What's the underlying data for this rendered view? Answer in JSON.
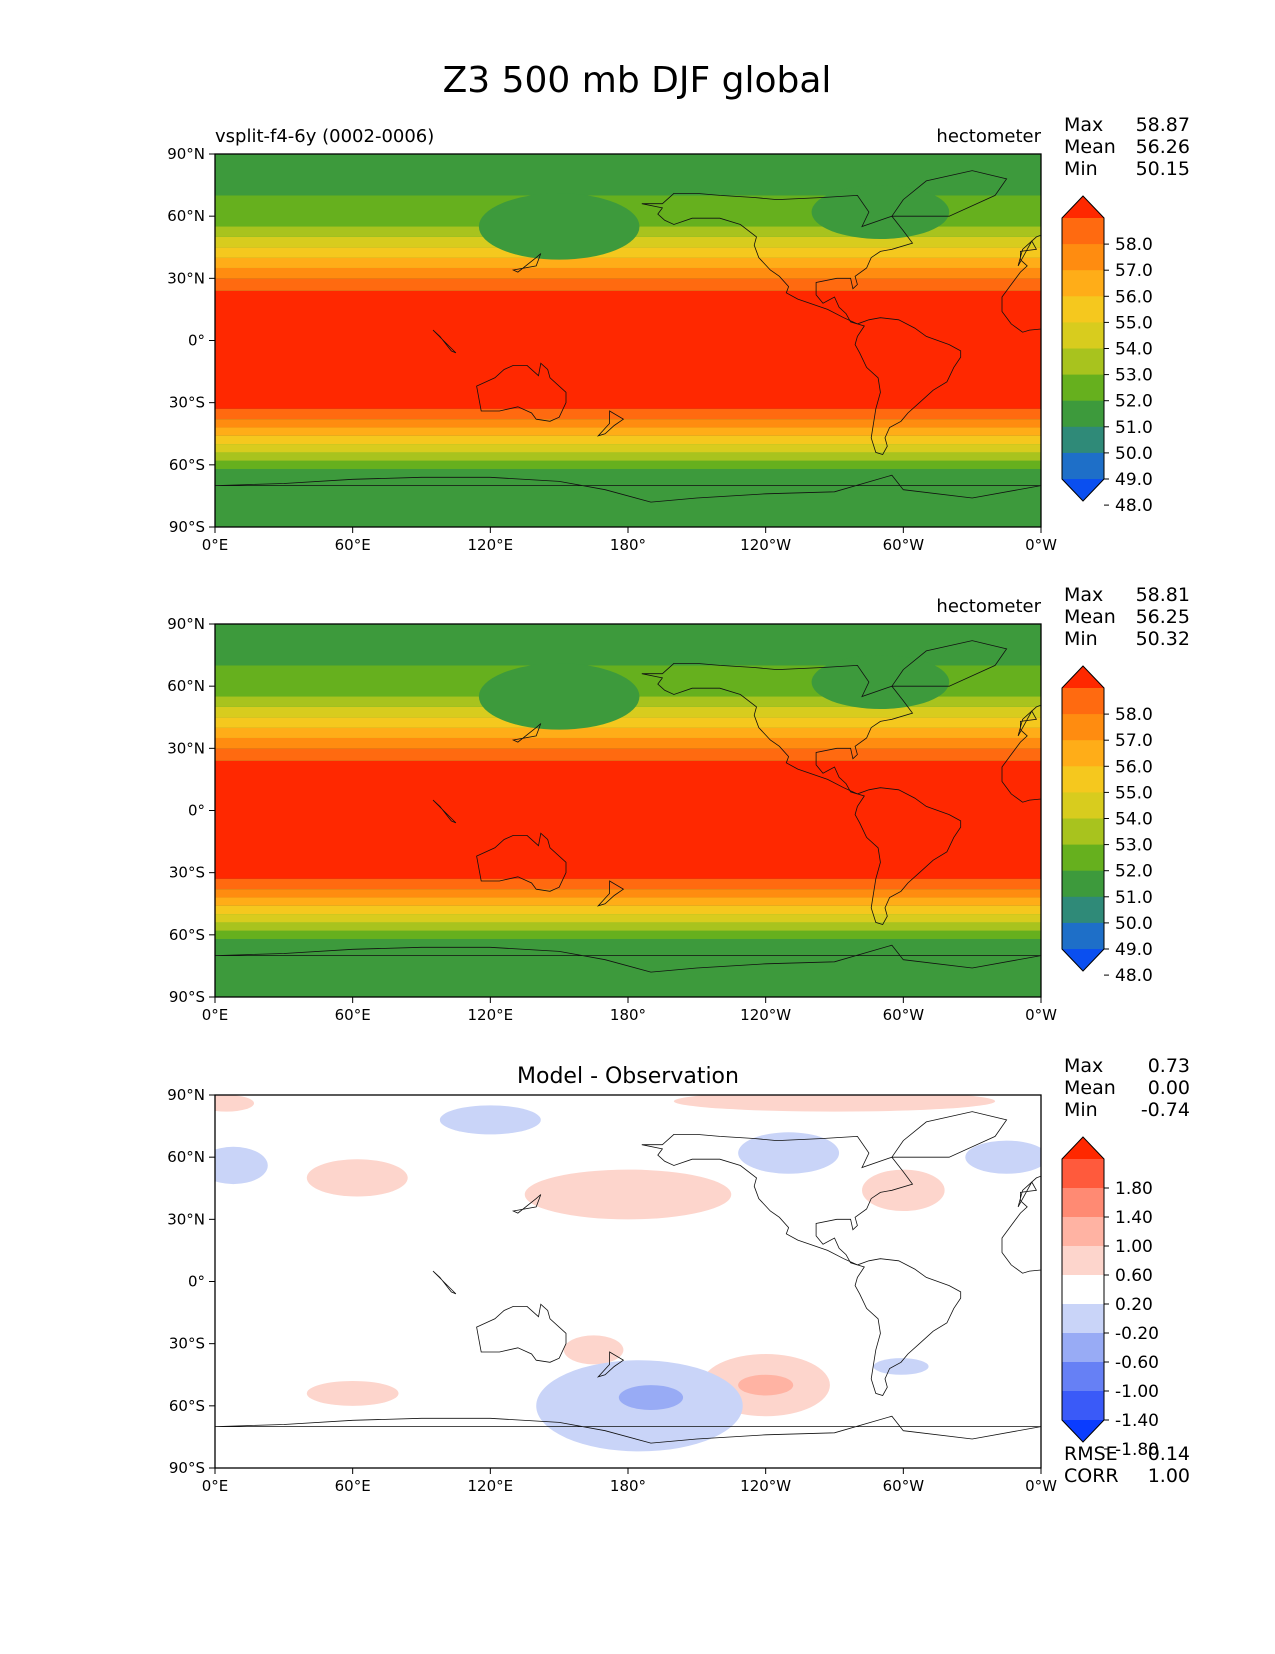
{
  "figure": {
    "title": "Z3 500 mb DJF global"
  },
  "chart_data": [
    {
      "type": "heatmap",
      "title": "",
      "left_title": "vsplit-f4-6y (0002-0006)",
      "units": "hectometer",
      "stats": [
        {
          "label": "Max",
          "value": "58.87"
        },
        {
          "label": "Mean",
          "value": "56.26"
        },
        {
          "label": "Min",
          "value": "50.15"
        }
      ],
      "x_ticks": [
        "0°E",
        "60°E",
        "120°E",
        "180°",
        "120°W",
        "60°W",
        "0°W"
      ],
      "y_ticks": [
        "90°N",
        "60°N",
        "30°N",
        "0°",
        "30°S",
        "60°S",
        "90°S"
      ],
      "xlim": [
        0,
        360
      ],
      "ylim": [
        -90,
        90
      ],
      "colorbar_levels": [
        "58.0",
        "57.0",
        "56.0",
        "55.0",
        "54.0",
        "53.0",
        "52.0",
        "51.0",
        "50.0",
        "49.0",
        "48.0"
      ],
      "colorbar_colors": [
        "#ff2800",
        "#ff6a10",
        "#ff8c10",
        "#ffad18",
        "#f5c81e",
        "#d8cc1e",
        "#a8c31e",
        "#66b01e",
        "#3d9a3c",
        "#2f8a78",
        "#1e6fc8",
        "#0a4ff0"
      ],
      "zonal_bands": [
        {
          "lat": [
            -90,
            -62
          ],
          "level": 8
        },
        {
          "lat": [
            -62,
            -58
          ],
          "level": 7
        },
        {
          "lat": [
            -58,
            -54
          ],
          "level": 6
        },
        {
          "lat": [
            -54,
            -50
          ],
          "level": 5
        },
        {
          "lat": [
            -50,
            -46
          ],
          "level": 4
        },
        {
          "lat": [
            -46,
            -42
          ],
          "level": 3
        },
        {
          "lat": [
            -42,
            -38
          ],
          "level": 2
        },
        {
          "lat": [
            -38,
            -33
          ],
          "level": 1
        },
        {
          "lat": [
            -33,
            24
          ],
          "level": 0
        },
        {
          "lat": [
            24,
            30
          ],
          "level": 1
        },
        {
          "lat": [
            30,
            35
          ],
          "level": 2
        },
        {
          "lat": [
            35,
            40
          ],
          "level": 3
        },
        {
          "lat": [
            40,
            45
          ],
          "level": 4
        },
        {
          "lat": [
            45,
            50
          ],
          "level": 5
        },
        {
          "lat": [
            50,
            55
          ],
          "level": 6
        },
        {
          "lat": [
            55,
            70
          ],
          "level": 7
        },
        {
          "lat": [
            70,
            90
          ],
          "level": 8
        }
      ],
      "anomalies": [
        {
          "lon": 150,
          "lat": 55,
          "rx": 35,
          "ry": 16,
          "level": 8
        },
        {
          "lon": 290,
          "lat": 62,
          "rx": 30,
          "ry": 13,
          "level": 8
        }
      ]
    },
    {
      "type": "heatmap",
      "title": "",
      "left_title": "",
      "units": "hectometer",
      "stats": [
        {
          "label": "Max",
          "value": "58.81"
        },
        {
          "label": "Mean",
          "value": "56.25"
        },
        {
          "label": "Min",
          "value": "50.32"
        }
      ],
      "x_ticks": [
        "0°E",
        "60°E",
        "120°E",
        "180°",
        "120°W",
        "60°W",
        "0°W"
      ],
      "y_ticks": [
        "90°N",
        "60°N",
        "30°N",
        "0°",
        "30°S",
        "60°S",
        "90°S"
      ],
      "xlim": [
        0,
        360
      ],
      "ylim": [
        -90,
        90
      ],
      "colorbar_levels": [
        "58.0",
        "57.0",
        "56.0",
        "55.0",
        "54.0",
        "53.0",
        "52.0",
        "51.0",
        "50.0",
        "49.0",
        "48.0"
      ],
      "colorbar_colors": [
        "#ff2800",
        "#ff6a10",
        "#ff8c10",
        "#ffad18",
        "#f5c81e",
        "#d8cc1e",
        "#a8c31e",
        "#66b01e",
        "#3d9a3c",
        "#2f8a78",
        "#1e6fc8",
        "#0a4ff0"
      ],
      "zonal_bands": [
        {
          "lat": [
            -90,
            -62
          ],
          "level": 8
        },
        {
          "lat": [
            -62,
            -58
          ],
          "level": 7
        },
        {
          "lat": [
            -58,
            -54
          ],
          "level": 6
        },
        {
          "lat": [
            -54,
            -50
          ],
          "level": 5
        },
        {
          "lat": [
            -50,
            -46
          ],
          "level": 4
        },
        {
          "lat": [
            -46,
            -42
          ],
          "level": 3
        },
        {
          "lat": [
            -42,
            -38
          ],
          "level": 2
        },
        {
          "lat": [
            -38,
            -33
          ],
          "level": 1
        },
        {
          "lat": [
            -33,
            24
          ],
          "level": 0
        },
        {
          "lat": [
            24,
            30
          ],
          "level": 1
        },
        {
          "lat": [
            30,
            35
          ],
          "level": 2
        },
        {
          "lat": [
            35,
            40
          ],
          "level": 3
        },
        {
          "lat": [
            40,
            45
          ],
          "level": 4
        },
        {
          "lat": [
            45,
            50
          ],
          "level": 5
        },
        {
          "lat": [
            50,
            55
          ],
          "level": 6
        },
        {
          "lat": [
            55,
            70
          ],
          "level": 7
        },
        {
          "lat": [
            70,
            90
          ],
          "level": 8
        }
      ],
      "anomalies": [
        {
          "lon": 150,
          "lat": 55,
          "rx": 35,
          "ry": 16,
          "level": 8
        },
        {
          "lon": 290,
          "lat": 62,
          "rx": 30,
          "ry": 13,
          "level": 8
        }
      ]
    },
    {
      "type": "heatmap",
      "title": "Model - Observation",
      "left_title": "",
      "units": "",
      "stats": [
        {
          "label": "Max",
          "value": "0.73"
        },
        {
          "label": "Mean",
          "value": "0.00"
        },
        {
          "label": "Min",
          "value": "-0.74"
        }
      ],
      "bottom_stats": [
        {
          "label": "RMSE",
          "value": "0.14"
        },
        {
          "label": "CORR",
          "value": "1.00"
        }
      ],
      "x_ticks": [
        "0°E",
        "60°E",
        "120°E",
        "180°",
        "120°W",
        "60°W",
        "0°W"
      ],
      "y_ticks": [
        "90°N",
        "60°N",
        "30°N",
        "0°",
        "30°S",
        "60°S",
        "90°S"
      ],
      "xlim": [
        0,
        360
      ],
      "ylim": [
        -90,
        90
      ],
      "colorbar_levels": [
        "1.80",
        "1.40",
        "1.00",
        "0.60",
        "0.20",
        "-0.20",
        "-0.60",
        "-1.00",
        "-1.40",
        "-1.80"
      ],
      "colorbar_colors": [
        "#ff2800",
        "#ff5a3c",
        "#ff8a73",
        "#ffb3a3",
        "#fdd5cc",
        "#ffffff",
        "#c9d4f8",
        "#98abf5",
        "#6680f5",
        "#3a5af8",
        "#0a3cff"
      ],
      "zonal_bands": [],
      "anomalies": [
        {
          "lon": 62,
          "lat": 50,
          "rx": 22,
          "ry": 9,
          "level": 4
        },
        {
          "lon": 180,
          "lat": 42,
          "rx": 45,
          "ry": 12,
          "level": 4
        },
        {
          "lon": 300,
          "lat": 44,
          "rx": 18,
          "ry": 10,
          "level": 4
        },
        {
          "lon": 270,
          "lat": 87,
          "rx": 70,
          "ry": 5,
          "level": 4
        },
        {
          "lon": 5,
          "lat": 86,
          "rx": 12,
          "ry": 4,
          "level": 4
        },
        {
          "lon": 165,
          "lat": -33,
          "rx": 13,
          "ry": 7,
          "level": 4
        },
        {
          "lon": 240,
          "lat": -50,
          "rx": 28,
          "ry": 15,
          "level": 4
        },
        {
          "lon": 240,
          "lat": -50,
          "rx": 12,
          "ry": 5,
          "level": 3
        },
        {
          "lon": 60,
          "lat": -54,
          "rx": 20,
          "ry": 6,
          "level": 4
        },
        {
          "lon": 120,
          "lat": 78,
          "rx": 22,
          "ry": 7,
          "level": 6
        },
        {
          "lon": 250,
          "lat": 62,
          "rx": 22,
          "ry": 10,
          "level": 6
        },
        {
          "lon": 345,
          "lat": 60,
          "rx": 18,
          "ry": 8,
          "level": 6
        },
        {
          "lon": 8,
          "lat": 56,
          "rx": 15,
          "ry": 9,
          "level": 6
        },
        {
          "lon": 299,
          "lat": -41,
          "rx": 12,
          "ry": 4,
          "level": 6
        },
        {
          "lon": 185,
          "lat": -60,
          "rx": 45,
          "ry": 22,
          "level": 6
        },
        {
          "lon": 190,
          "lat": -56,
          "rx": 14,
          "ry": 6,
          "level": 7
        }
      ]
    }
  ]
}
